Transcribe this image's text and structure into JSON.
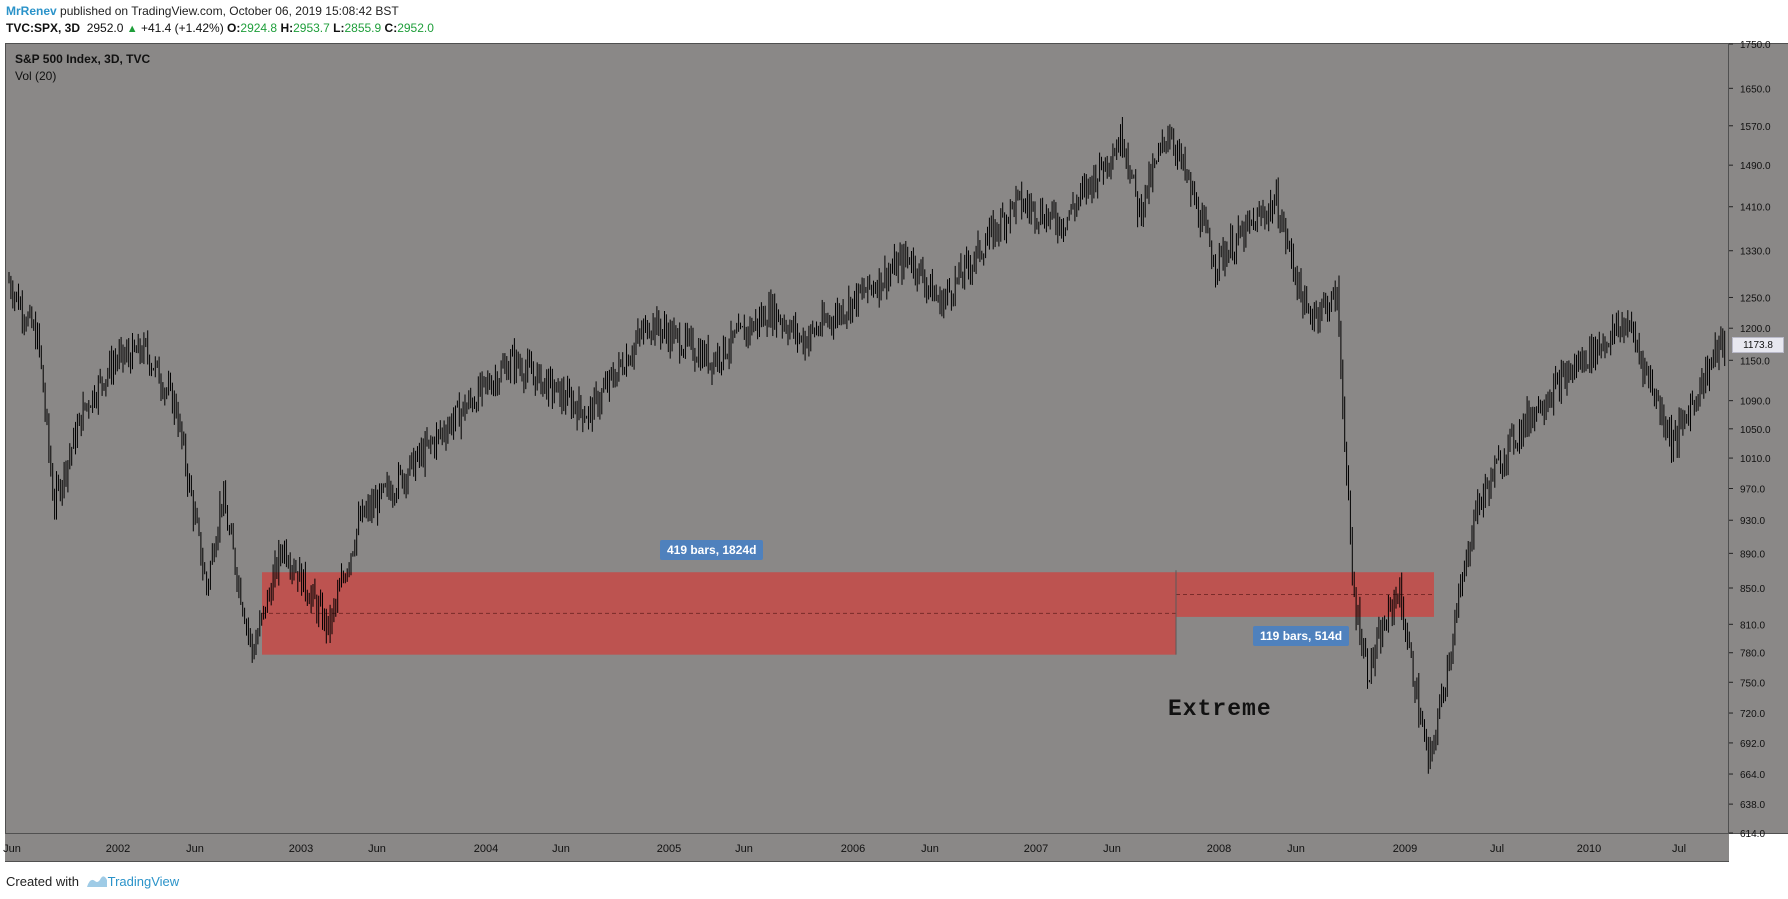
{
  "header": {
    "author": "MrRenev",
    "published_text": " published on TradingView.com, October 06, 2019 15:08:42 BST",
    "symbol": "TVC:SPX, 3D",
    "last": "2952.0",
    "change": "+41.4 (+1.42%)",
    "o_label": "O:",
    "o_val": "2924.8",
    "h_label": "H:",
    "h_val": "2953.7",
    "l_label": "L:",
    "l_val": "2855.9",
    "c_label": "C:",
    "c_val": "2952.0"
  },
  "legend": {
    "title": "S&P 500 Index, 3D, TVC",
    "volume": "Vol (20)"
  },
  "annotations": {
    "range1": "419 bars, 1824d",
    "range2": "119 bars, 514d",
    "note": "Extreme"
  },
  "footer": {
    "created_with": "Created with",
    "brand": "TradingView"
  },
  "colors": {
    "background": "#8a8887",
    "zone": "#c0504d",
    "tag": "#4f81bd",
    "candle": "#000000"
  },
  "chart_data": {
    "type": "line",
    "scale": "log",
    "price_ticks": [
      614.0,
      638.0,
      664.0,
      692.0,
      720.0,
      750.0,
      780.0,
      810.0,
      850.0,
      890.0,
      930.0,
      970.0,
      1010.0,
      1050.0,
      1090.0,
      1150.0,
      1200.0,
      1250.0,
      1330.0,
      1410.0,
      1490.0,
      1570.0,
      1650.0,
      1750.0
    ],
    "last_price": "1173.8",
    "time_ticks": [
      "Jun",
      "2002",
      "Jun",
      "2003",
      "Jun",
      "2004",
      "Jun",
      "2005",
      "Jun",
      "2006",
      "Jun",
      "2007",
      "Jun",
      "2008",
      "Jun",
      "2009",
      "Jul",
      "2010",
      "Jul"
    ],
    "ylim": [
      614,
      1750
    ],
    "grid": false,
    "series": [
      {
        "values": [
          {
            "x": "2001-06",
            "y": 1280
          },
          {
            "x": "2001-08",
            "y": 1180
          },
          {
            "x": "2001-09",
            "y": 950
          },
          {
            "x": "2001-11",
            "y": 1080
          },
          {
            "x": "2002-01",
            "y": 1150
          },
          {
            "x": "2002-03",
            "y": 1165
          },
          {
            "x": "2002-05",
            "y": 1080
          },
          {
            "x": "2002-07",
            "y": 850
          },
          {
            "x": "2002-08",
            "y": 960
          },
          {
            "x": "2002-10",
            "y": 780
          },
          {
            "x": "2002-12",
            "y": 900
          },
          {
            "x": "2003-03",
            "y": 805
          },
          {
            "x": "2003-05",
            "y": 930
          },
          {
            "x": "2003-08",
            "y": 990
          },
          {
            "x": "2003-11",
            "y": 1060
          },
          {
            "x": "2004-03",
            "y": 1150
          },
          {
            "x": "2004-08",
            "y": 1070
          },
          {
            "x": "2004-12",
            "y": 1210
          },
          {
            "x": "2005-04",
            "y": 1150
          },
          {
            "x": "2005-08",
            "y": 1230
          },
          {
            "x": "2005-10",
            "y": 1180
          },
          {
            "x": "2006-05",
            "y": 1320
          },
          {
            "x": "2006-07",
            "y": 1240
          },
          {
            "x": "2006-12",
            "y": 1420
          },
          {
            "x": "2007-03",
            "y": 1380
          },
          {
            "x": "2007-07",
            "y": 1550
          },
          {
            "x": "2007-08",
            "y": 1400
          },
          {
            "x": "2007-10",
            "y": 1565
          },
          {
            "x": "2008-01",
            "y": 1310
          },
          {
            "x": "2008-05",
            "y": 1420
          },
          {
            "x": "2008-07",
            "y": 1220
          },
          {
            "x": "2008-09",
            "y": 1250
          },
          {
            "x": "2008-10",
            "y": 850
          },
          {
            "x": "2008-11",
            "y": 760
          },
          {
            "x": "2009-01",
            "y": 850
          },
          {
            "x": "2009-03",
            "y": 670
          },
          {
            "x": "2009-06",
            "y": 940
          },
          {
            "x": "2009-08",
            "y": 1020
          },
          {
            "x": "2009-10",
            "y": 1080
          },
          {
            "x": "2010-01",
            "y": 1150
          },
          {
            "x": "2010-04",
            "y": 1210
          },
          {
            "x": "2010-07",
            "y": 1030
          },
          {
            "x": "2010-10",
            "y": 1173.8
          }
        ]
      }
    ],
    "zones": [
      {
        "from": "2002-10",
        "to": "2007-10",
        "price_high": 868,
        "price_low": 778,
        "label": "419 bars, 1824d"
      },
      {
        "from": "2007-10",
        "to": "2009-02",
        "price_high": 868,
        "price_low": 818,
        "label": "119 bars, 514d"
      }
    ]
  }
}
